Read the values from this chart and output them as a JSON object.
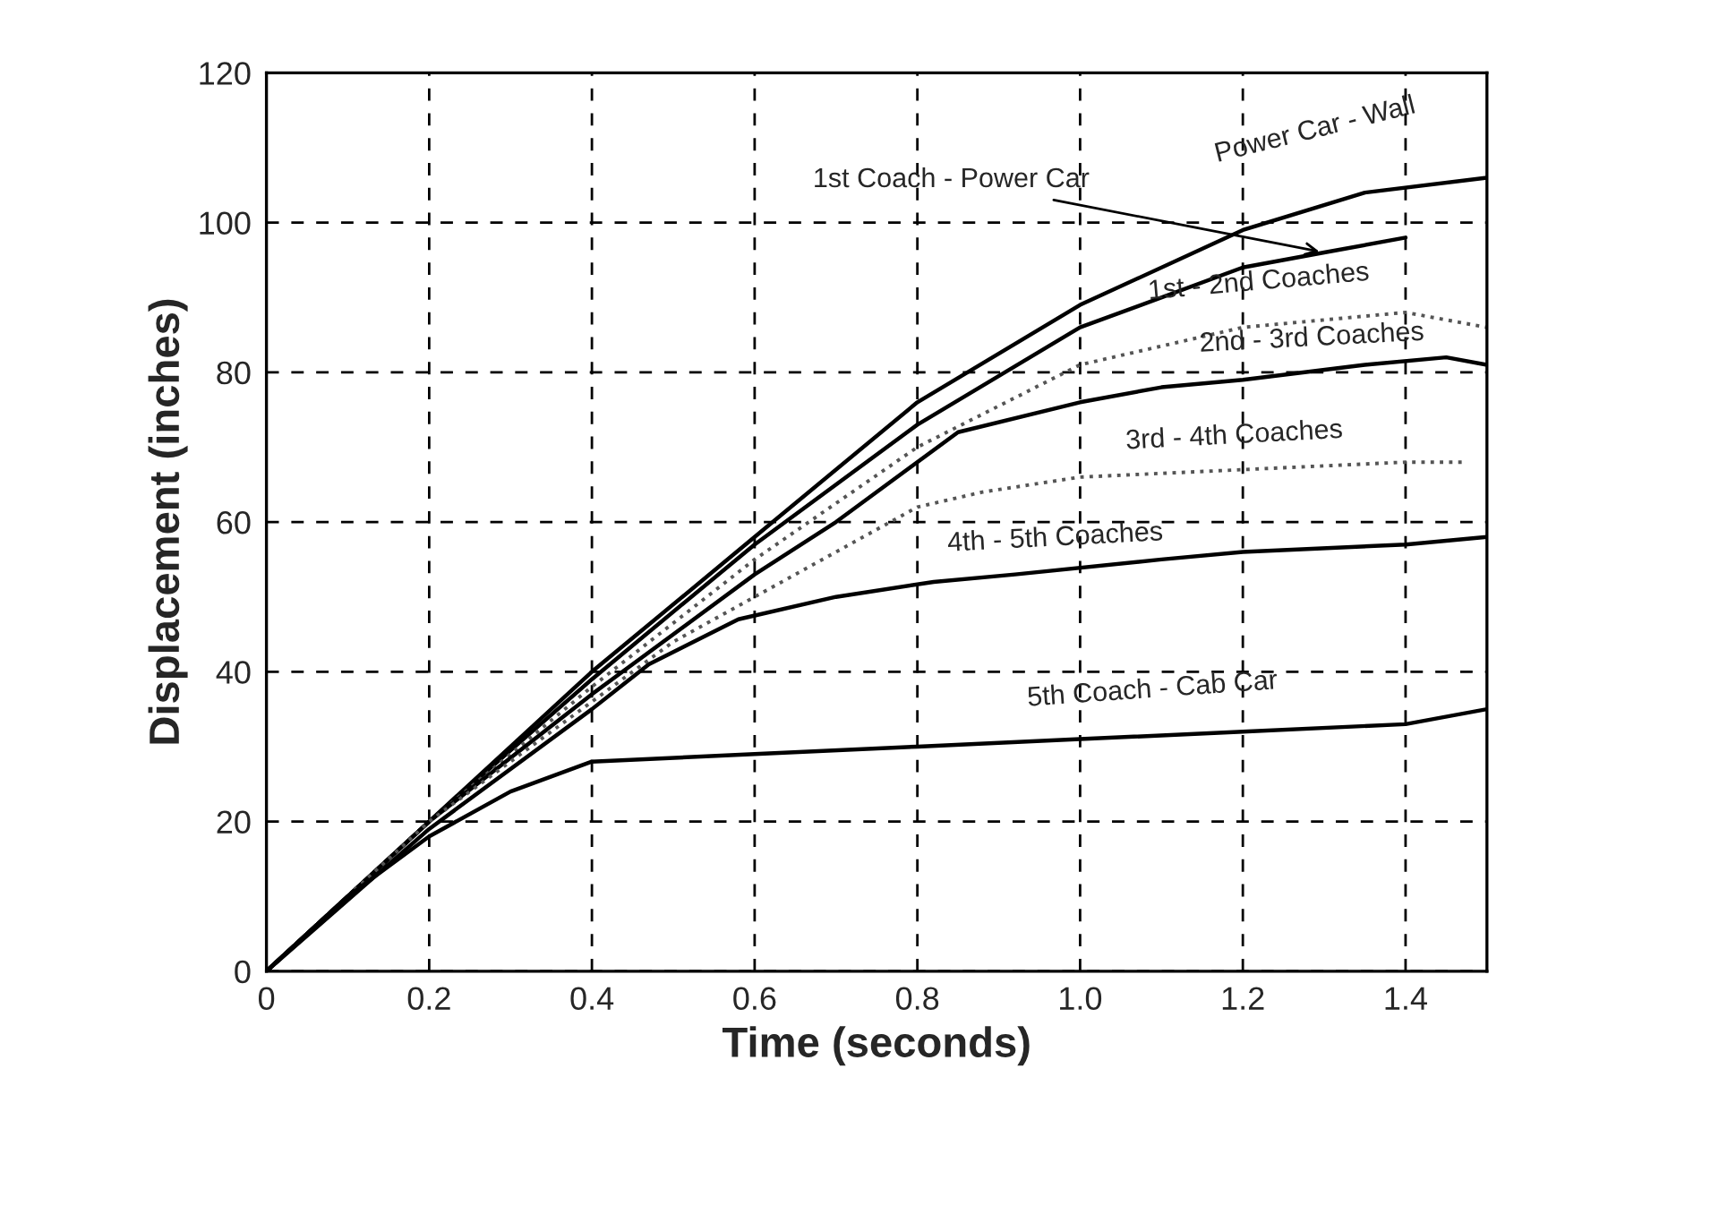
{
  "chart_data": {
    "type": "line",
    "xlabel": "Time (seconds)",
    "ylabel": "Displacement (inches)",
    "xlim": [
      0,
      1.5
    ],
    "ylim": [
      0,
      120
    ],
    "xticks": [
      0,
      0.2,
      0.4,
      0.6,
      0.8,
      {
        "value": 1.0,
        "label": "1.0"
      },
      1.2,
      1.4
    ],
    "yticks": [
      0,
      20,
      40,
      60,
      80,
      100,
      120
    ],
    "grid": true,
    "marker": "none",
    "series": [
      {
        "color": "#000000",
        "line_style": "solid",
        "x": [
          0,
          0.2,
          0.4,
          0.6,
          0.8,
          1.0,
          1.2,
          1.35,
          1.5
        ],
        "values": [
          0,
          20,
          40,
          58,
          76,
          89,
          99,
          104,
          106
        ]
      },
      {
        "color": "#000000",
        "line_style": "solid",
        "x": [
          0,
          0.2,
          0.4,
          0.6,
          0.8,
          1.0,
          1.2,
          1.3,
          1.4
        ],
        "values": [
          0,
          20,
          39,
          57,
          73,
          86,
          94,
          96,
          98
        ]
      },
      {
        "color": "#555555",
        "line_style": "dotted",
        "x": [
          0,
          0.2,
          0.4,
          0.6,
          0.8,
          1.0,
          1.2,
          1.4,
          1.5
        ],
        "values": [
          0,
          20,
          38,
          55,
          70,
          81,
          86,
          88,
          86
        ]
      },
      {
        "color": "#000000",
        "line_style": "solid",
        "x": [
          0,
          0.2,
          0.4,
          0.6,
          0.7,
          0.85,
          1.0,
          1.1,
          1.2,
          1.35,
          1.45,
          1.5
        ],
        "values": [
          0,
          20,
          37,
          53,
          60,
          72,
          76,
          78,
          79,
          81,
          82,
          81
        ]
      },
      {
        "color": "#555555",
        "line_style": "dotted",
        "x": [
          0,
          0.2,
          0.4,
          0.5,
          0.6,
          0.8,
          0.88,
          1.0,
          1.2,
          1.4,
          1.47
        ],
        "values": [
          0,
          20,
          36,
          44,
          50,
          62,
          64,
          66,
          67,
          68,
          68
        ]
      },
      {
        "color": "#000000",
        "line_style": "solid",
        "x": [
          0,
          0.2,
          0.4,
          0.47,
          0.58,
          0.7,
          0.82,
          0.92,
          1.1,
          1.2,
          1.4,
          1.5
        ],
        "values": [
          0,
          19,
          35,
          41,
          47,
          50,
          52,
          53,
          55,
          56,
          57,
          58
        ]
      },
      {
        "color": "#000000",
        "line_style": "solid",
        "x": [
          0,
          0.1,
          0.2,
          0.3,
          0.4,
          0.6,
          0.8,
          1.0,
          1.2,
          1.4,
          1.5
        ],
        "values": [
          0,
          10,
          18,
          24,
          28,
          29,
          30,
          31,
          32,
          33,
          35
        ]
      }
    ],
    "annotations": [
      {
        "text": "Power Car - Wall",
        "x": 1.35,
        "y": 104
      },
      {
        "text": "1st Coach - Power Car",
        "x": 1.3,
        "y": 96
      },
      {
        "text": "1st - 2nd Coaches",
        "x": 1.25,
        "y": 87
      },
      {
        "text": "2nd - 3rd Coaches",
        "x": 1.3,
        "y": 80
      },
      {
        "text": "3rd - 4th Coaches",
        "x": 1.22,
        "y": 67
      },
      {
        "text": "4th - 5th Coaches",
        "x": 1.0,
        "y": 54
      },
      {
        "text": "5th Coach - Cab Car",
        "x": 1.15,
        "y": 32
      }
    ]
  }
}
